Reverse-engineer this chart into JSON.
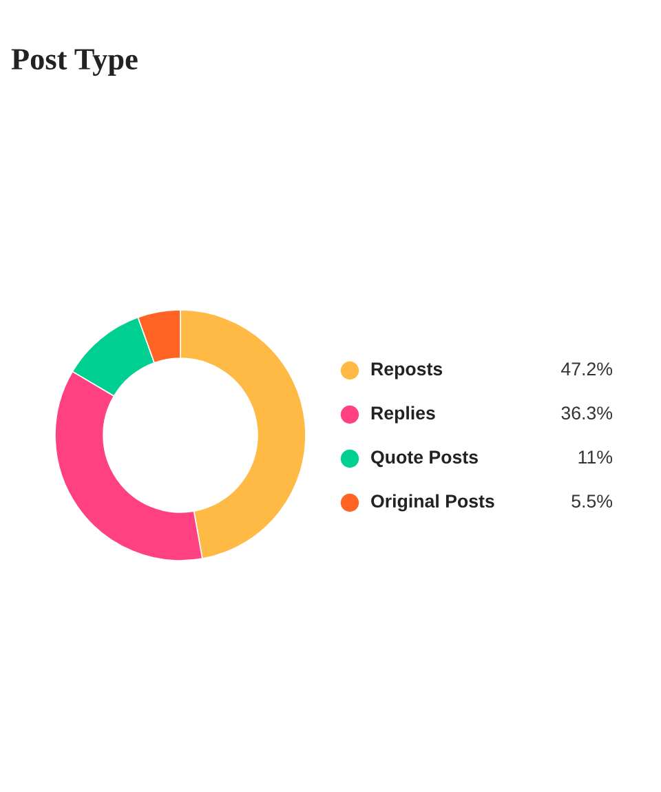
{
  "chart_data": {
    "type": "donut",
    "title": "Post Type",
    "categories": [
      "Reposts",
      "Replies",
      "Quote Posts",
      "Original Posts"
    ],
    "values": [
      47.2,
      36.3,
      11,
      5.5
    ],
    "colors": [
      "#ffba45",
      "#ff4081",
      "#00cf92",
      "#ff6424"
    ],
    "value_labels": [
      "47.2%",
      "36.3%",
      "11%",
      "5.5%"
    ],
    "legend": "right"
  }
}
